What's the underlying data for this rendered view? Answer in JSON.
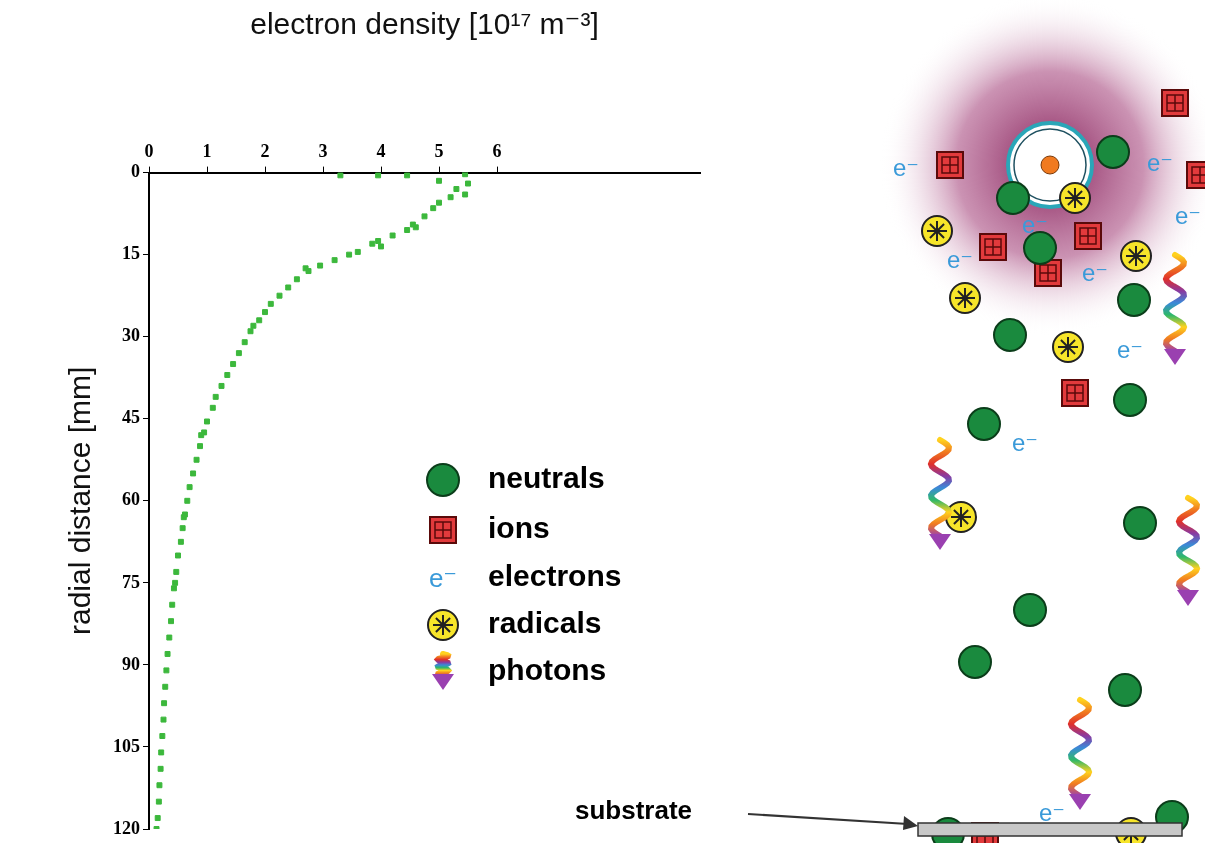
{
  "chart_data": {
    "type": "scatter",
    "x_label": "electron density [10¹⁷ m⁻³]",
    "y_label": "radial distance [mm]",
    "x": [
      3.3,
      3.95,
      4.45,
      5.0,
      5.45,
      5.5,
      5.3,
      5.45,
      5.2,
      5.0,
      4.9,
      4.75,
      4.6,
      4.55,
      4.45,
      4.2,
      4.0,
      3.95,
      3.85,
      3.6,
      3.45,
      3.2,
      2.95,
      2.7,
      2.75,
      2.55,
      2.4,
      2.25,
      2.1,
      2.0,
      1.9,
      1.8,
      1.75,
      1.65,
      1.55,
      1.45,
      1.35,
      1.25,
      1.15,
      1.1,
      1.0,
      0.95,
      0.9,
      0.88,
      0.82,
      0.76,
      0.7,
      0.66,
      0.6,
      0.62,
      0.58,
      0.55,
      0.5,
      0.47,
      0.45,
      0.43,
      0.4,
      0.38,
      0.35,
      0.32,
      0.3,
      0.28,
      0.26,
      0.25,
      0.23,
      0.21,
      0.2,
      0.18,
      0.17,
      0.15,
      0.13
    ],
    "values": [
      0.5,
      0.5,
      0.5,
      1.5,
      0.3,
      2,
      3,
      4,
      4.5,
      5.5,
      6.5,
      8,
      10,
      9.5,
      10.5,
      11.5,
      13.5,
      12.5,
      13,
      14.5,
      15,
      16,
      17,
      17.5,
      18,
      19.5,
      21,
      22.5,
      24,
      25.5,
      27,
      28,
      29,
      31,
      33,
      35,
      37,
      39,
      41,
      43,
      45.5,
      47.5,
      48,
      50,
      52.5,
      55,
      57.5,
      60,
      63,
      62.5,
      65,
      67.5,
      70,
      73,
      75,
      76,
      79,
      82,
      85,
      88,
      91,
      94,
      97,
      100,
      103,
      106,
      109,
      112,
      115,
      118,
      120
    ],
    "color": "#3cb83c",
    "marker": "square",
    "xlim": [
      0,
      9.5
    ],
    "xticks": [
      0,
      1,
      2,
      3,
      4,
      5,
      6
    ],
    "ylim": [
      120,
      0
    ],
    "yticks": [
      0,
      15,
      30,
      45,
      60,
      75,
      90,
      105,
      120
    ],
    "grid": false
  },
  "diagram": {
    "legend": [
      {
        "label": "neutrals",
        "shape": "neutral"
      },
      {
        "label": "ions",
        "shape": "ion"
      },
      {
        "label": "electrons",
        "shape": "electron"
      },
      {
        "label": "radicals",
        "shape": "radical"
      },
      {
        "label": "photons",
        "shape": "photon"
      }
    ],
    "electron_symbol": "e⁻",
    "substrate_label": "substrate"
  }
}
